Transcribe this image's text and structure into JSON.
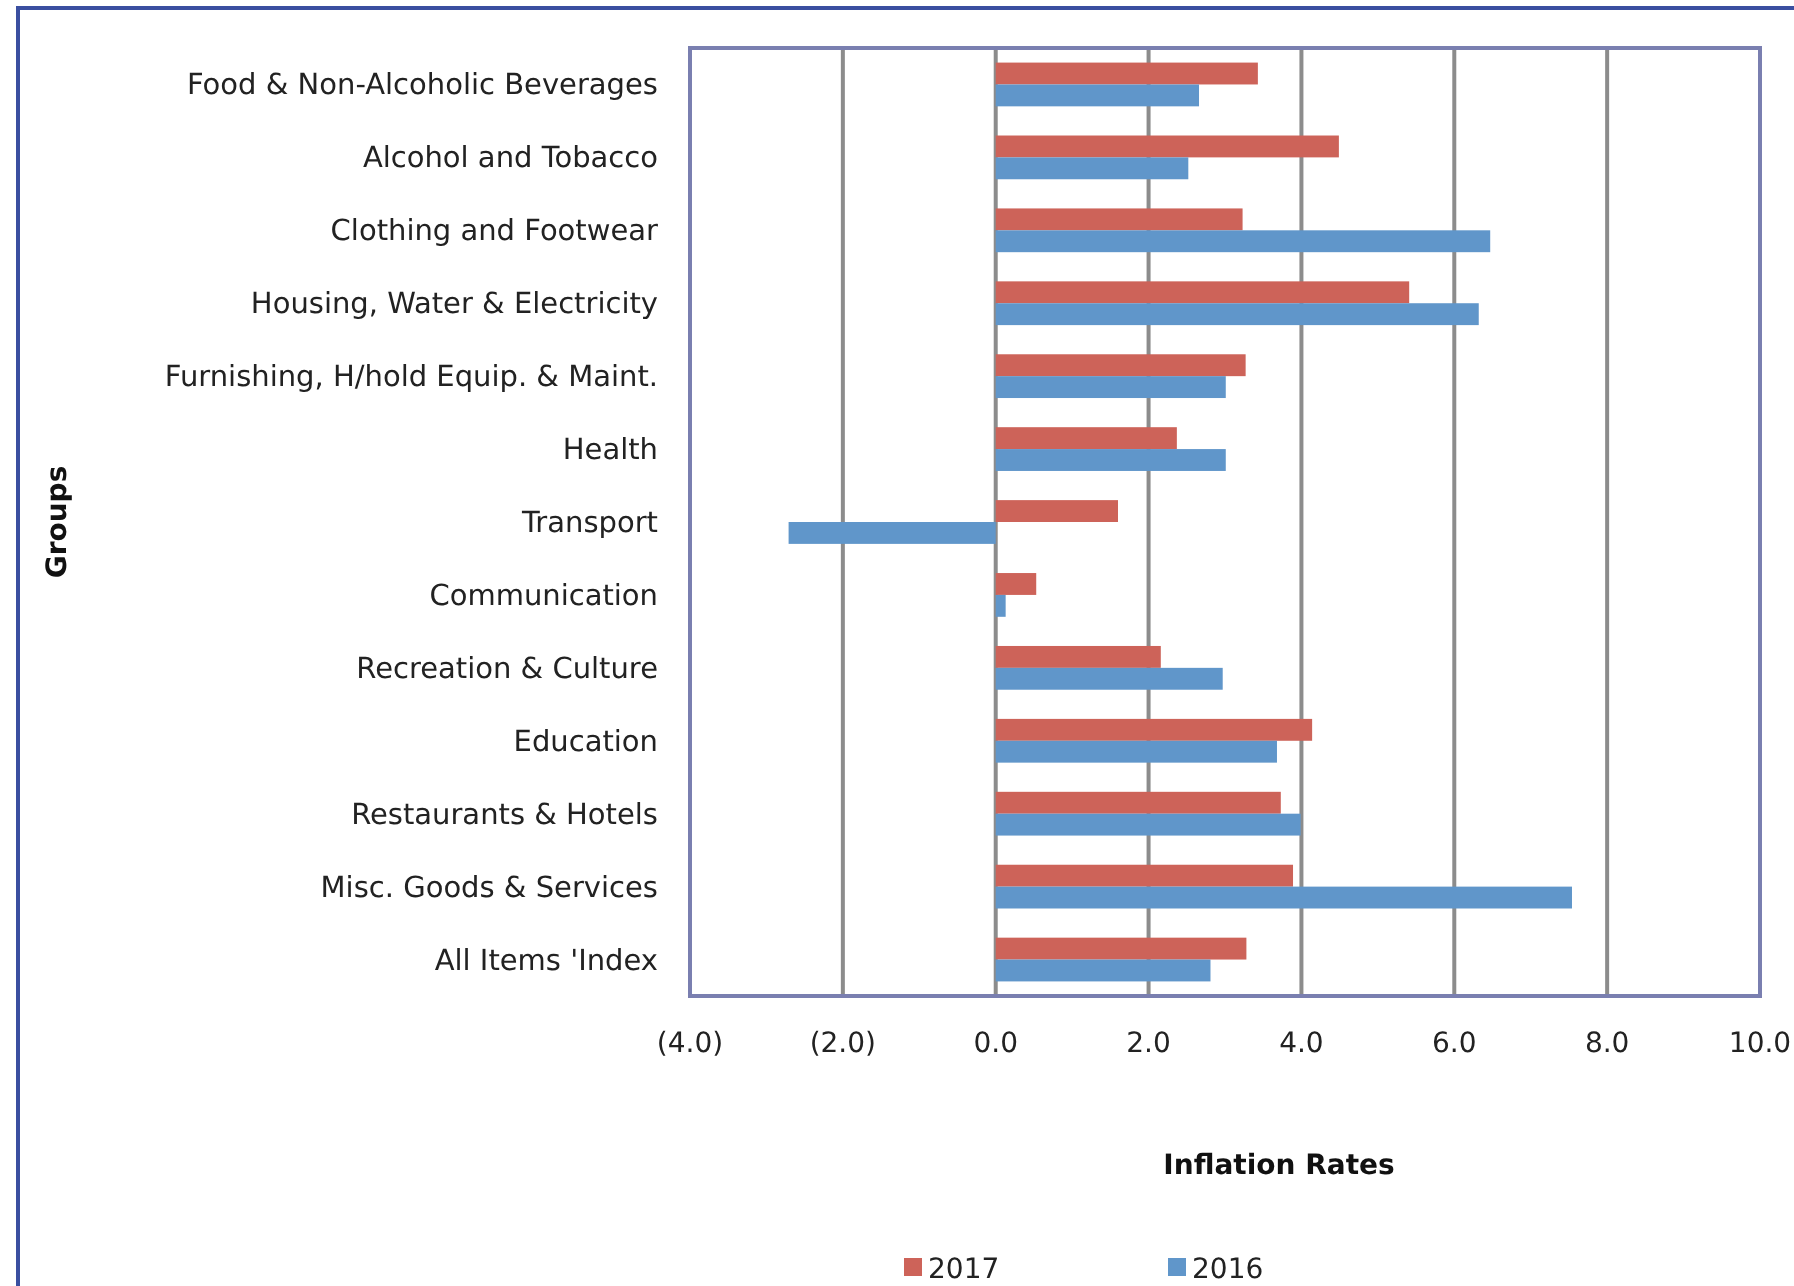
{
  "chart_data": {
    "type": "bar",
    "orientation": "horizontal",
    "xlabel": "Inflation Rates",
    "ylabel": "Groups",
    "categories": [
      "Food & Non-Alcoholic Beverages",
      "Alcohol and Tobacco",
      "Clothing and Footwear",
      "Housing, Water & Electricity",
      "Furnishing, H/hold Equip. & Maint.",
      "Health",
      "Transport",
      "Communication",
      "Recreation & Culture",
      "Education",
      "Restaurants & Hotels",
      "Misc. Goods & Services",
      "All Items 'Index"
    ],
    "series": [
      {
        "name": "2017",
        "color": "#cd6359",
        "values": [
          3.43,
          4.49,
          3.23,
          5.41,
          3.27,
          2.37,
          1.6,
          0.53,
          2.16,
          4.14,
          3.73,
          3.89,
          3.28
        ]
      },
      {
        "name": "2016",
        "color": "#6096ca",
        "values": [
          2.66,
          2.52,
          6.47,
          6.32,
          3.01,
          3.01,
          -2.71,
          0.13,
          2.97,
          3.68,
          3.99,
          7.54,
          2.81
        ]
      }
    ],
    "xlim": [
      -4,
      10
    ],
    "xticks": [
      {
        "value": -4,
        "label": "(4.0)"
      },
      {
        "value": -2,
        "label": "(2.0)"
      },
      {
        "value": 0,
        "label": "0.0"
      },
      {
        "value": 2,
        "label": "2.0"
      },
      {
        "value": 4,
        "label": "4.0"
      },
      {
        "value": 6,
        "label": "6.0"
      },
      {
        "value": 8,
        "label": "8.0"
      },
      {
        "value": 10,
        "label": "10.0"
      }
    ],
    "grid": "x",
    "legend": "bottom"
  }
}
